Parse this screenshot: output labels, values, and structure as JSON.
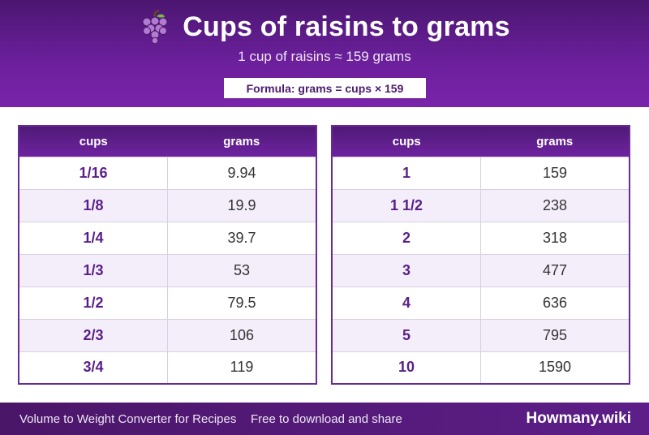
{
  "header": {
    "icon": "grapes-icon",
    "title": "Cups of raisins to grams",
    "subtitle": "1 cup of raisins ≈ 159 grams",
    "formula": "Formula: grams = cups × 159"
  },
  "tables": {
    "left": {
      "headers": [
        "cups",
        "grams"
      ],
      "rows": [
        [
          "1/16",
          "9.94"
        ],
        [
          "1/8",
          "19.9"
        ],
        [
          "1/4",
          "39.7"
        ],
        [
          "1/3",
          "53"
        ],
        [
          "1/2",
          "79.5"
        ],
        [
          "2/3",
          "106"
        ],
        [
          "3/4",
          "119"
        ]
      ]
    },
    "right": {
      "headers": [
        "cups",
        "grams"
      ],
      "rows": [
        [
          "1",
          "159"
        ],
        [
          "1 1/2",
          "238"
        ],
        [
          "2",
          "318"
        ],
        [
          "3",
          "477"
        ],
        [
          "4",
          "636"
        ],
        [
          "5",
          "795"
        ],
        [
          "10",
          "1590"
        ]
      ]
    }
  },
  "footer": {
    "left_text": "Volume to Weight Converter for Recipes",
    "mid_text": "Free to download and share",
    "brand": "Howmany.wiki"
  },
  "colors": {
    "primary": "#6a1f9a",
    "dark": "#4b1670",
    "row_alt": "#f4eefb"
  }
}
